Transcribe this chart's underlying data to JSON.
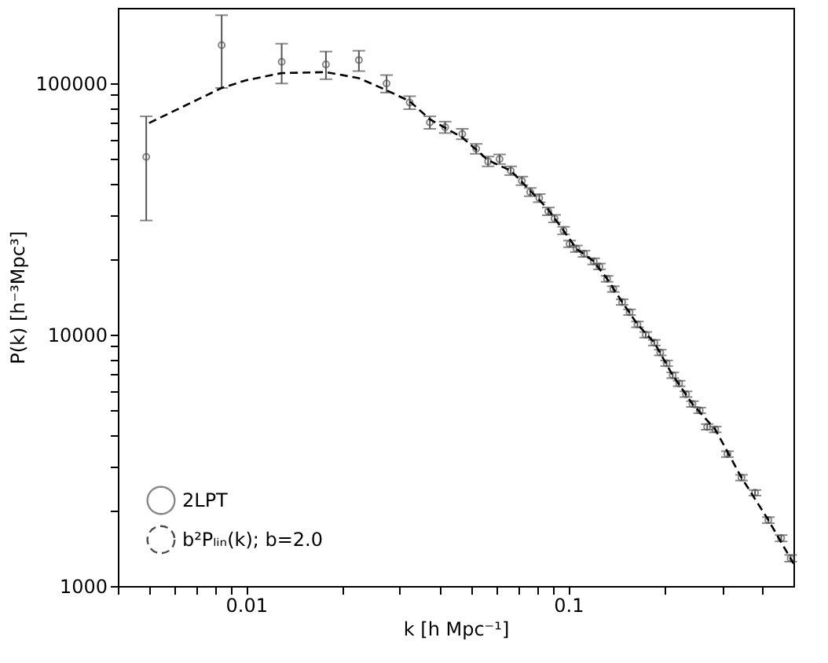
{
  "chart_data": {
    "type": "scatter",
    "xlabel": "k [h Mpc⁻¹]",
    "ylabel": "P(k) [h⁻³Mpc³]",
    "log": "xy",
    "grid": false,
    "legend": "bottom left",
    "xlim": [
      0.004,
      0.5
    ],
    "ylim": [
      1000,
      200000
    ],
    "xticks": [
      {
        "value": 0.004,
        "label": null
      },
      {
        "value": 0.005,
        "label": null
      },
      {
        "value": 0.006,
        "label": null
      },
      {
        "value": 0.007,
        "label": null
      },
      {
        "value": 0.008,
        "label": null
      },
      {
        "value": 0.009,
        "label": null
      },
      0.01,
      {
        "value": 0.02,
        "label": null
      },
      {
        "value": 0.03,
        "label": null
      },
      {
        "value": 0.04,
        "label": null
      },
      {
        "value": 0.05,
        "label": null
      },
      {
        "value": 0.06,
        "label": null
      },
      {
        "value": 0.07,
        "label": null
      },
      {
        "value": 0.08,
        "label": null
      },
      {
        "value": 0.09,
        "label": null
      },
      0.1,
      {
        "value": 0.2,
        "label": null
      },
      {
        "value": 0.3,
        "label": null
      },
      {
        "value": 0.4,
        "label": null
      }
    ],
    "yticks": [
      1000,
      {
        "value": 2000,
        "label": null
      },
      {
        "value": 3000,
        "label": null
      },
      {
        "value": 4000,
        "label": null
      },
      {
        "value": 5000,
        "label": null
      },
      {
        "value": 6000,
        "label": null
      },
      {
        "value": 7000,
        "label": null
      },
      {
        "value": 8000,
        "label": null
      },
      {
        "value": 9000,
        "label": null
      },
      10000,
      {
        "value": 20000,
        "label": null
      },
      {
        "value": 30000,
        "label": null
      },
      {
        "value": 40000,
        "label": null
      },
      {
        "value": 50000,
        "label": null
      },
      {
        "value": 60000,
        "label": null
      },
      {
        "value": 70000,
        "label": null
      },
      {
        "value": 80000,
        "label": null
      },
      {
        "value": 90000,
        "label": null
      },
      100000
    ],
    "series": [
      {
        "name": "2LPT",
        "marker": "circle",
        "color": "#555555",
        "x": [
          0.0049,
          0.0084,
          0.0129,
          0.0177,
          0.0224,
          0.0273,
          0.0322,
          0.0372,
          0.0415,
          0.0469,
          0.0518,
          0.0564,
          0.0612,
          0.0663,
          0.0718,
          0.0762,
          0.0813,
          0.0867,
          0.0907,
          0.0967,
          0.101,
          0.106,
          0.112,
          0.12,
          0.125,
          0.132,
          0.138,
          0.147,
          0.155,
          0.164,
          0.174,
          0.185,
          0.193,
          0.202,
          0.211,
          0.221,
          0.232,
          0.243,
          0.256,
          0.27,
          0.286,
          0.312,
          0.345,
          0.38,
          0.418,
          0.458,
          0.49
        ],
        "values": [
          51000,
          142000,
          122000,
          119000,
          124000,
          100000,
          84000,
          70000,
          67000,
          63000,
          55000,
          49000,
          50000,
          45000,
          41000,
          37000,
          35000,
          31000,
          29000,
          26000,
          23000,
          22000,
          21000,
          19600,
          18700,
          16700,
          15200,
          13500,
          12300,
          11000,
          10000,
          9300,
          8500,
          7700,
          6900,
          6400,
          5800,
          5300,
          5000,
          4300,
          4200,
          3350,
          2700,
          2350,
          1830,
          1550,
          1290
        ],
        "errors": [
          [
            28500,
            74000
          ],
          [
            96000,
            187000
          ],
          [
            100000,
            144000
          ],
          [
            104000,
            134000
          ],
          [
            112000,
            135000
          ],
          [
            92000,
            108000
          ],
          5000,
          4000,
          3500,
          3000,
          2500,
          2200,
          2200,
          1800,
          1600,
          1400,
          1300,
          1100,
          1000,
          900,
          700,
          650,
          600,
          550,
          500,
          450,
          400,
          350,
          320,
          290,
          260,
          240,
          220,
          200,
          180,
          160,
          150,
          140,
          130,
          110,
          110,
          90,
          70,
          60,
          50,
          45,
          40
        ]
      },
      {
        "name": "b²Pₗᵢₙ(k); b=2.0",
        "type": "line",
        "line_style": "dashed",
        "marker": "none",
        "color": "#000000",
        "x": [
          0.005,
          0.0084,
          0.01,
          0.0129,
          0.0177,
          0.0224,
          0.0273,
          0.0322,
          0.0372,
          0.0469,
          0.0564,
          0.0663,
          0.0762,
          0.0867,
          0.0967,
          0.106,
          0.12,
          0.132,
          0.147,
          0.164,
          0.185,
          0.211,
          0.243,
          0.286,
          0.345,
          0.418,
          0.5
        ],
        "values": [
          69600,
          96000,
          103000,
          110000,
          111000,
          105000,
          94000,
          85000,
          72000,
          61000,
          49500,
          45000,
          37500,
          31500,
          26000,
          22000,
          19600,
          16700,
          13500,
          11000,
          9300,
          6900,
          5300,
          4200,
          2700,
          1830,
          1230
        ]
      }
    ]
  }
}
